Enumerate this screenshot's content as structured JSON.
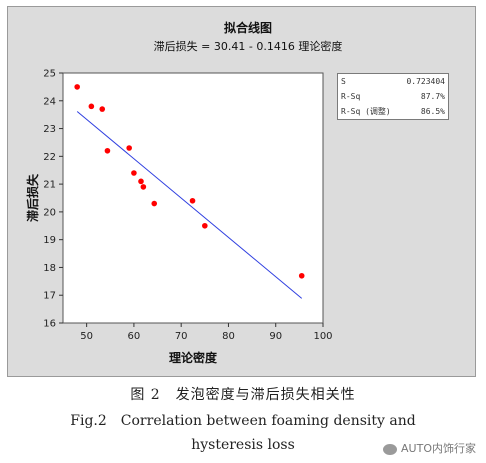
{
  "chart_data": {
    "type": "scatter",
    "title": "拟合线图",
    "subtitle": "滞后损失 = 30.41 - 0.1416 理论密度",
    "xlabel": "理论密度",
    "ylabel": "滞后损失",
    "xlim": [
      45,
      100
    ],
    "ylim": [
      16,
      25
    ],
    "xticks": [
      50,
      60,
      70,
      80,
      90,
      100
    ],
    "yticks": [
      16,
      17,
      18,
      19,
      20,
      21,
      22,
      23,
      24,
      25
    ],
    "points": [
      {
        "x": 48,
        "y": 24.5
      },
      {
        "x": 51,
        "y": 23.8
      },
      {
        "x": 53.3,
        "y": 23.7
      },
      {
        "x": 54.4,
        "y": 22.2
      },
      {
        "x": 59,
        "y": 22.3
      },
      {
        "x": 60,
        "y": 21.4
      },
      {
        "x": 61.5,
        "y": 21.1
      },
      {
        "x": 62,
        "y": 20.9
      },
      {
        "x": 64.3,
        "y": 20.3
      },
      {
        "x": 72.4,
        "y": 20.4
      },
      {
        "x": 75,
        "y": 19.5
      },
      {
        "x": 95.5,
        "y": 17.7
      }
    ],
    "fit_line": {
      "intercept": 30.41,
      "slope": -0.1416,
      "x_range": [
        48,
        95.5
      ]
    },
    "colors": {
      "points": "#ff0000",
      "fit_line": "#2f3fe0"
    },
    "grid": false
  },
  "stats": [
    {
      "label": "S",
      "value": "0.723404"
    },
    {
      "label": "R-Sq",
      "value": "87.7%"
    },
    {
      "label": "R-Sq (调整)",
      "value": "86.5%"
    }
  ],
  "captions": {
    "cn": "图 2　发泡密度与滞后损失相关性",
    "en_line1": "Fig.2　Correlation between foaming density and",
    "en_line2": "hysteresis loss"
  },
  "watermark": "AUTO内饰行家"
}
